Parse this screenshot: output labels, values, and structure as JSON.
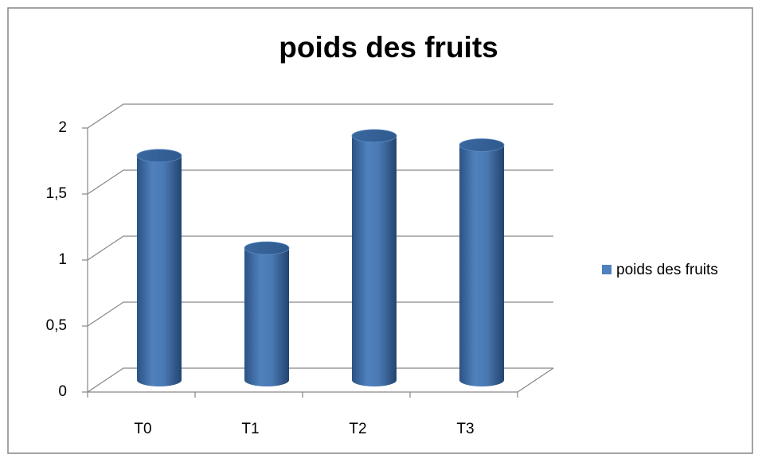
{
  "chart_data": {
    "type": "bar3d",
    "title": "poids des fruits",
    "categories": [
      "T0",
      "T1",
      "T2",
      "T3"
    ],
    "series": [
      {
        "name": "poids des fruits",
        "color": "#4f81bd",
        "values": [
          1.7,
          1,
          1.85,
          1.78
        ]
      }
    ],
    "ylim": [
      0,
      2
    ],
    "yticks": [
      0,
      {
        "value": 0.5,
        "label": "0,5"
      },
      1,
      {
        "value": 1.5,
        "label": "1,5"
      },
      2
    ],
    "grid": true,
    "legend": "right"
  }
}
